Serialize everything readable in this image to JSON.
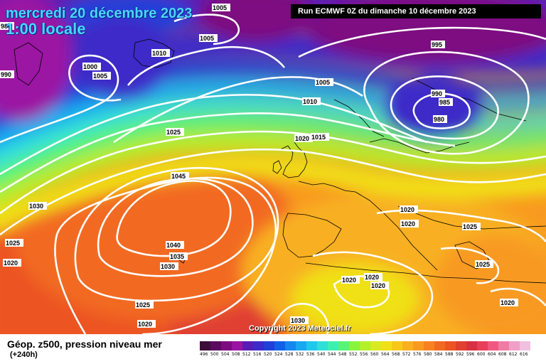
{
  "header": {
    "date_line": "mercredi 20 décembre 2023",
    "time_line": "1:00 locale",
    "run_line": "Run ECMWF 0Z du dimanche 10 décembre 2023"
  },
  "copyright": "Copyright 2023 Meteociel.fr",
  "footer": {
    "title": "Géop. z500, pression niveau mer",
    "subtitle": "(+240h)"
  },
  "legend": {
    "values": [
      "496",
      "500",
      "504",
      "508",
      "512",
      "516",
      "520",
      "524",
      "528",
      "532",
      "536",
      "540",
      "544",
      "548",
      "552",
      "556",
      "560",
      "564",
      "568",
      "572",
      "576",
      "580",
      "584",
      "588",
      "592",
      "596",
      "600",
      "604",
      "608",
      "612",
      "616"
    ],
    "colors": [
      "#3d0d3a",
      "#5c0a5e",
      "#7d0b80",
      "#9b13a3",
      "#5a1bb5",
      "#3d2ac8",
      "#2040d8",
      "#1060e8",
      "#1486f0",
      "#18a8f2",
      "#20c8ee",
      "#30e0d8",
      "#3ef0b0",
      "#58f478",
      "#88f440",
      "#b4f02a",
      "#d8ea22",
      "#f0e018",
      "#f8c818",
      "#f8b020",
      "#f89a20",
      "#f88220",
      "#f26a20",
      "#ec5520",
      "#e04030",
      "#d83040",
      "#e83e5a",
      "#f05880",
      "#f07ca6",
      "#f0a0c8",
      "#f0c0e0"
    ]
  },
  "isobars": [
    {
      "text": "1005"
    },
    {
      "text": "1005"
    },
    {
      "text": "1010"
    },
    {
      "text": "1000"
    },
    {
      "text": "1005"
    },
    {
      "text": "995"
    },
    {
      "text": "1005"
    },
    {
      "text": "990"
    },
    {
      "text": "985"
    },
    {
      "text": "980"
    },
    {
      "text": "1010"
    },
    {
      "text": "1025"
    },
    {
      "text": "1020"
    },
    {
      "text": "1015"
    },
    {
      "text": "1045"
    },
    {
      "text": "1030"
    },
    {
      "text": "1025"
    },
    {
      "text": "1020"
    },
    {
      "text": "1020"
    },
    {
      "text": "1025"
    },
    {
      "text": "1040"
    },
    {
      "text": "1035"
    },
    {
      "text": "1030"
    },
    {
      "text": "1025"
    },
    {
      "text": "1020"
    },
    {
      "text": "1020"
    },
    {
      "text": "1020"
    },
    {
      "text": "1020"
    },
    {
      "text": "1025"
    },
    {
      "text": "1020"
    },
    {
      "text": "1030"
    },
    {
      "text": "1020"
    },
    {
      "text": "985"
    },
    {
      "text": "990"
    }
  ]
}
